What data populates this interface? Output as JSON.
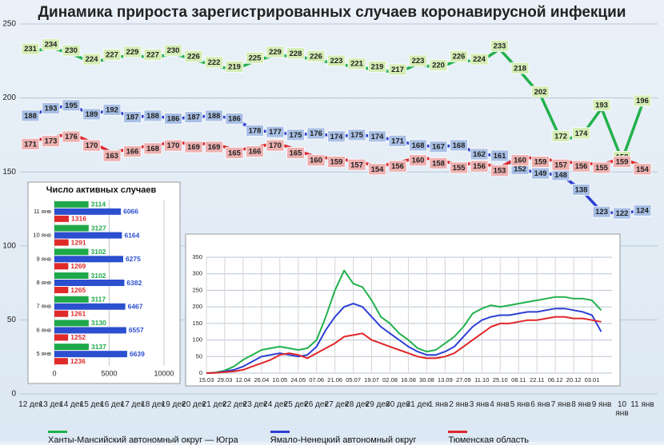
{
  "chart_data": [
    {
      "type": "line",
      "title": "Динамика прироста зарегистрированных случаев коронавирусной инфекции",
      "categories": [
        "12 дек",
        "13 дек",
        "14 дек",
        "15 дек",
        "16 дек",
        "17 дек",
        "18 дек",
        "19 дек",
        "20 дек",
        "21 дек",
        "22 дек",
        "23 дек",
        "24 дек",
        "25 дек",
        "26 дек",
        "27 дек",
        "28 дек",
        "29 дек",
        "30 дек",
        "31 дек",
        "1 янв",
        "2 янв",
        "3 янв",
        "4 янв",
        "5 янв",
        "6 янв",
        "7 янв",
        "8 янв",
        "9 янв",
        "10 янв",
        "11 янв"
      ],
      "series": [
        {
          "name": "Ханты-Мансийский автономный округ — Югра",
          "color": "#22b14c",
          "values": [
            231,
            234,
            230,
            224,
            227,
            229,
            227,
            230,
            226,
            222,
            219,
            225,
            229,
            228,
            226,
            223,
            221,
            219,
            217,
            223,
            220,
            226,
            224,
            233,
            218,
            202,
            172,
            174,
            193,
            158,
            196
          ]
        },
        {
          "name": "Ямало-Ненецкий автономный округ",
          "color": "#2d3fd4",
          "values": [
            188,
            193,
            195,
            189,
            192,
            187,
            188,
            186,
            187,
            188,
            186,
            178,
            177,
            175,
            176,
            174,
            175,
            174,
            171,
            168,
            167,
            168,
            162,
            161,
            152,
            149,
            148,
            138,
            123,
            122,
            124
          ]
        },
        {
          "name": "Тюменская область",
          "color": "#e0262a",
          "values": [
            171,
            173,
            176,
            170,
            163,
            166,
            168,
            170,
            169,
            169,
            165,
            166,
            170,
            165,
            160,
            159,
            157,
            154,
            156,
            160,
            158,
            155,
            156,
            153,
            160,
            159,
            157,
            156,
            155,
            159,
            154
          ]
        }
      ],
      "ylim": [
        0,
        250
      ],
      "yticks": [
        0,
        50,
        100,
        150,
        200,
        250
      ],
      "grid": true
    },
    {
      "type": "bar",
      "orientation": "horizontal",
      "title": "Число активных случаев",
      "categories": [
        "11 янв",
        "10 янв",
        "9 янв",
        "8 янв",
        "7 янв",
        "6 янв",
        "5 янв"
      ],
      "series": [
        {
          "name": "Ханты-Мансийский автономный округ — Югра",
          "color": "#1ea84a",
          "values": [
            3114,
            3127,
            3102,
            3102,
            3117,
            3130,
            3137
          ]
        },
        {
          "name": "Ямало-Ненецкий автономный округ",
          "color": "#2b4fcf",
          "values": [
            6066,
            6164,
            6275,
            6382,
            6467,
            6557,
            6639
          ]
        },
        {
          "name": "Тюменская область",
          "color": "#e02a2a",
          "values": [
            1316,
            1291,
            1269,
            1265,
            1261,
            1252,
            1236
          ]
        }
      ],
      "xlim": [
        0,
        10000
      ],
      "xticks": [
        0,
        5000,
        10000
      ],
      "grid": true
    },
    {
      "type": "line",
      "categories": [
        "15.03",
        null,
        "29.03",
        null,
        "12.04",
        null,
        "26.04",
        null,
        "10.05",
        null,
        "24.05",
        null,
        "07.06",
        null,
        "21.06",
        null,
        "05.07",
        null,
        "19.07",
        null,
        "02.08",
        null,
        "16.08",
        null,
        "30.08",
        null,
        "13.09",
        null,
        "27.09",
        null,
        "11.10",
        null,
        "25.10",
        null,
        "08.11",
        null,
        "22.11",
        null,
        "06.12",
        null,
        "20.12",
        null,
        "03.01",
        null
      ],
      "series": [
        {
          "name": "Ханты-Мансийский автономный округ — Югра",
          "color": "#22b14c",
          "values": [
            0,
            2,
            8,
            20,
            40,
            55,
            70,
            75,
            80,
            75,
            70,
            75,
            100,
            170,
            250,
            310,
            270,
            260,
            220,
            170,
            150,
            120,
            100,
            75,
            65,
            70,
            90,
            110,
            140,
            180,
            195,
            205,
            200,
            205,
            210,
            215,
            220,
            225,
            230,
            230,
            225,
            225,
            220,
            190
          ]
        },
        {
          "name": "Ямало-Ненецкий автономный округ",
          "color": "#2d3fd4",
          "values": [
            0,
            1,
            5,
            10,
            20,
            35,
            50,
            55,
            60,
            55,
            50,
            55,
            80,
            130,
            170,
            200,
            210,
            200,
            170,
            140,
            120,
            100,
            80,
            65,
            55,
            55,
            65,
            80,
            110,
            140,
            160,
            170,
            175,
            175,
            180,
            185,
            185,
            190,
            195,
            195,
            190,
            185,
            175,
            125
          ]
        },
        {
          "name": "Тюменская область",
          "color": "#e0262a",
          "values": [
            0,
            1,
            3,
            5,
            10,
            20,
            30,
            40,
            55,
            60,
            55,
            45,
            60,
            75,
            90,
            110,
            115,
            120,
            100,
            90,
            80,
            70,
            60,
            50,
            45,
            45,
            50,
            60,
            80,
            100,
            120,
            140,
            150,
            150,
            155,
            160,
            160,
            165,
            170,
            170,
            165,
            165,
            160,
            155
          ]
        }
      ],
      "ylim": [
        0,
        350
      ],
      "yticks": [
        0,
        50,
        100,
        150,
        200,
        250,
        300,
        350
      ],
      "grid": true
    }
  ]
}
